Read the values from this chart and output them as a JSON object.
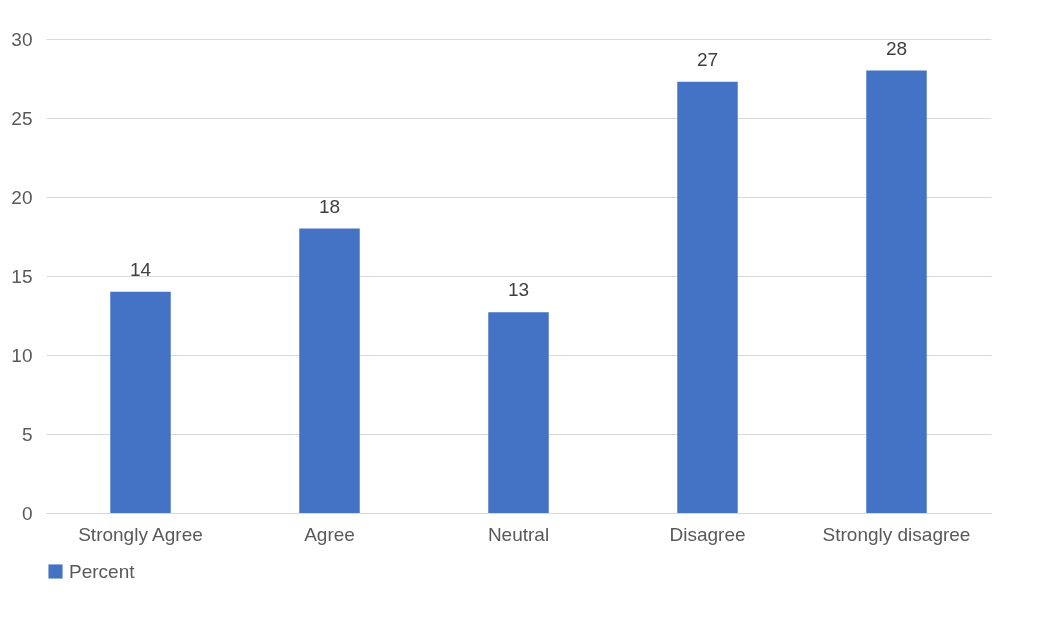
{
  "chart_data": {
    "type": "bar",
    "categories": [
      "Strongly Agree",
      "Agree",
      "Neutral",
      "Disagree",
      "Strongly disagree"
    ],
    "series": [
      {
        "name": "Percent",
        "color": "#4472c4",
        "values": [
          14,
          18,
          12.7,
          27.3,
          28
        ],
        "value_labels": [
          "14",
          "18",
          "13",
          "27",
          "28"
        ]
      }
    ],
    "ylim": [
      0,
      30
    ],
    "yticks": [
      0,
      5,
      10,
      15,
      20,
      25,
      30
    ],
    "grid": "y",
    "legend": "bottom"
  }
}
